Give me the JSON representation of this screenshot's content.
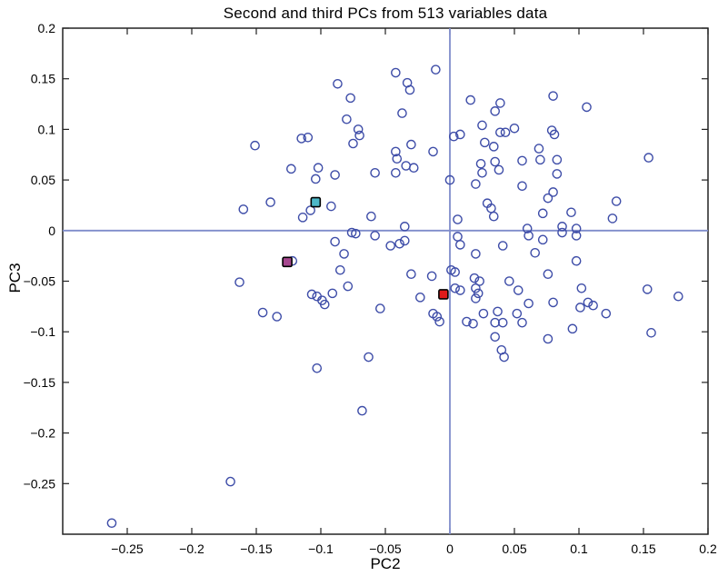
{
  "chart_data": {
    "type": "scatter",
    "title": "Second and third PCs from 513 variables data",
    "xlabel": "PC2",
    "ylabel": "PC3",
    "xlim": [
      -0.3,
      0.2
    ],
    "ylim": [
      -0.3,
      0.2
    ],
    "xticks": [
      -0.25,
      -0.2,
      -0.15,
      -0.1,
      -0.05,
      0,
      0.05,
      0.1,
      0.15,
      0.2
    ],
    "xtick_labels": [
      "−0.25",
      "−0.2",
      "−0.15",
      "−0.1",
      "−0.05",
      "0",
      "0.05",
      "0.1",
      "0.15",
      "0.2"
    ],
    "yticks": [
      0.2,
      0.15,
      0.1,
      0.05,
      0,
      -0.05,
      -0.1,
      -0.15,
      -0.2,
      -0.25
    ],
    "ytick_labels": [
      "0.2",
      "0.15",
      "0.1",
      "0.05",
      "0",
      "−0.05",
      "−0.1",
      "−0.15",
      "−0.2",
      "−0.25"
    ],
    "grid": false,
    "legend": "none",
    "reference_lines": [
      {
        "axis": "x",
        "value": 0,
        "color": "#7f8ccb",
        "width": 1.8
      },
      {
        "axis": "y",
        "value": 0,
        "color": "#7f8ccb",
        "width": 1.8
      }
    ],
    "axis_color": "#222222",
    "series": [
      {
        "name": "pc-scores",
        "marker": "circle",
        "fill": "none",
        "edge_color": "#3e4da8",
        "marker_radius": 4.6,
        "edge_width": 1.4,
        "points": [
          [
            -0.042,
            0.156
          ],
          [
            -0.011,
            0.159
          ],
          [
            -0.033,
            0.146
          ],
          [
            -0.031,
            0.139
          ],
          [
            -0.087,
            0.145
          ],
          [
            -0.077,
            0.131
          ],
          [
            0.016,
            0.129
          ],
          [
            -0.037,
            0.116
          ],
          [
            -0.08,
            0.11
          ],
          [
            -0.071,
            0.1
          ],
          [
            0.025,
            0.104
          ],
          [
            -0.07,
            0.094
          ],
          [
            -0.115,
            0.091
          ],
          [
            -0.11,
            0.092
          ],
          [
            -0.075,
            0.086
          ],
          [
            0.003,
            0.093
          ],
          [
            0.008,
            0.095
          ],
          [
            0.027,
            0.087
          ],
          [
            -0.03,
            0.085
          ],
          [
            -0.013,
            0.078
          ],
          [
            -0.042,
            0.078
          ],
          [
            -0.041,
            0.071
          ],
          [
            -0.034,
            0.064
          ],
          [
            -0.028,
            0.062
          ],
          [
            -0.042,
            0.057
          ],
          [
            -0.058,
            0.057
          ],
          [
            -0.123,
            0.061
          ],
          [
            -0.102,
            0.062
          ],
          [
            -0.104,
            0.051
          ],
          [
            -0.089,
            0.055
          ],
          [
            0.0,
            0.05
          ],
          [
            0.024,
            0.066
          ],
          [
            0.025,
            0.057
          ],
          [
            0.02,
            0.046
          ],
          [
            -0.151,
            0.084
          ],
          [
            -0.16,
            0.021
          ],
          [
            -0.139,
            0.028
          ],
          [
            -0.092,
            0.024
          ],
          [
            -0.108,
            0.02
          ],
          [
            -0.114,
            0.013
          ],
          [
            -0.061,
            0.014
          ],
          [
            0.006,
            0.011
          ],
          [
            0.029,
            0.027
          ],
          [
            0.032,
            0.022
          ],
          [
            -0.035,
            0.004
          ],
          [
            0.08,
            0.133
          ],
          [
            0.106,
            0.122
          ],
          [
            0.039,
            0.126
          ],
          [
            0.035,
            0.118
          ],
          [
            0.05,
            0.101
          ],
          [
            0.039,
            0.097
          ],
          [
            0.043,
            0.097
          ],
          [
            0.079,
            0.099
          ],
          [
            0.081,
            0.095
          ],
          [
            0.034,
            0.083
          ],
          [
            0.069,
            0.081
          ],
          [
            0.056,
            0.069
          ],
          [
            0.07,
            0.07
          ],
          [
            0.083,
            0.07
          ],
          [
            0.035,
            0.068
          ],
          [
            0.038,
            0.06
          ],
          [
            0.083,
            0.056
          ],
          [
            0.154,
            0.072
          ],
          [
            0.056,
            0.044
          ],
          [
            0.08,
            0.038
          ],
          [
            0.076,
            0.032
          ],
          [
            0.129,
            0.029
          ],
          [
            0.072,
            0.017
          ],
          [
            0.094,
            0.018
          ],
          [
            0.126,
            0.012
          ],
          [
            0.06,
            0.002
          ],
          [
            0.087,
            0.004
          ],
          [
            0.098,
            0.002
          ],
          [
            0.034,
            0.014
          ],
          [
            -0.076,
            -0.002
          ],
          [
            -0.073,
            -0.003
          ],
          [
            -0.058,
            -0.005
          ],
          [
            -0.089,
            -0.011
          ],
          [
            -0.046,
            -0.015
          ],
          [
            -0.039,
            -0.013
          ],
          [
            -0.035,
            -0.01
          ],
          [
            -0.082,
            -0.023
          ],
          [
            -0.122,
            -0.03
          ],
          [
            -0.085,
            -0.039
          ],
          [
            -0.03,
            -0.043
          ],
          [
            -0.014,
            -0.045
          ],
          [
            -0.107,
            -0.063
          ],
          [
            -0.103,
            -0.065
          ],
          [
            -0.099,
            -0.069
          ],
          [
            -0.091,
            -0.062
          ],
          [
            -0.097,
            -0.073
          ],
          [
            -0.079,
            -0.055
          ],
          [
            -0.023,
            -0.066
          ],
          [
            -0.054,
            -0.077
          ],
          [
            -0.145,
            -0.081
          ],
          [
            -0.134,
            -0.085
          ],
          [
            -0.013,
            -0.082
          ],
          [
            -0.01,
            -0.085
          ],
          [
            -0.008,
            -0.09
          ],
          [
            -0.063,
            -0.125
          ],
          [
            -0.103,
            -0.136
          ],
          [
            -0.068,
            -0.178
          ],
          [
            -0.163,
            -0.051
          ],
          [
            -0.17,
            -0.248
          ],
          [
            -0.262,
            -0.289
          ],
          [
            0.006,
            -0.006
          ],
          [
            0.008,
            -0.014
          ],
          [
            0.02,
            -0.023
          ],
          [
            0.001,
            -0.039
          ],
          [
            0.004,
            -0.041
          ],
          [
            0.019,
            -0.047
          ],
          [
            0.023,
            -0.05
          ],
          [
            0.004,
            -0.057
          ],
          [
            0.008,
            -0.059
          ],
          [
            0.02,
            -0.057
          ],
          [
            0.022,
            -0.062
          ],
          [
            0.02,
            -0.067
          ],
          [
            0.013,
            -0.09
          ],
          [
            0.018,
            -0.092
          ],
          [
            0.026,
            -0.082
          ],
          [
            0.041,
            -0.015
          ],
          [
            0.066,
            -0.022
          ],
          [
            0.061,
            -0.005
          ],
          [
            0.072,
            -0.009
          ],
          [
            0.087,
            -0.002
          ],
          [
            0.098,
            -0.005
          ],
          [
            0.098,
            -0.03
          ],
          [
            0.076,
            -0.043
          ],
          [
            0.046,
            -0.05
          ],
          [
            0.053,
            -0.059
          ],
          [
            0.102,
            -0.057
          ],
          [
            0.153,
            -0.058
          ],
          [
            0.177,
            -0.065
          ],
          [
            0.061,
            -0.072
          ],
          [
            0.08,
            -0.071
          ],
          [
            0.107,
            -0.071
          ],
          [
            0.111,
            -0.074
          ],
          [
            0.101,
            -0.076
          ],
          [
            0.121,
            -0.082
          ],
          [
            0.037,
            -0.08
          ],
          [
            0.052,
            -0.082
          ],
          [
            0.035,
            -0.091
          ],
          [
            0.041,
            -0.091
          ],
          [
            0.056,
            -0.091
          ],
          [
            0.095,
            -0.097
          ],
          [
            0.035,
            -0.105
          ],
          [
            0.076,
            -0.107
          ],
          [
            0.156,
            -0.101
          ],
          [
            0.04,
            -0.118
          ],
          [
            0.042,
            -0.125
          ]
        ]
      },
      {
        "name": "highlight-teal",
        "marker": "square",
        "fill": "#4db8c8",
        "edge_color": "#000000",
        "marker_size": 10,
        "edge_width": 1.6,
        "points": [
          [
            -0.104,
            0.028
          ]
        ]
      },
      {
        "name": "highlight-magenta",
        "marker": "square",
        "fill": "#a6478f",
        "edge_color": "#000000",
        "marker_size": 10,
        "edge_width": 1.6,
        "points": [
          [
            -0.126,
            -0.031
          ]
        ]
      },
      {
        "name": "highlight-red",
        "marker": "square",
        "fill": "#de1a1a",
        "edge_color": "#000000",
        "marker_size": 10,
        "edge_width": 1.6,
        "points": [
          [
            -0.005,
            -0.063
          ]
        ]
      }
    ]
  }
}
